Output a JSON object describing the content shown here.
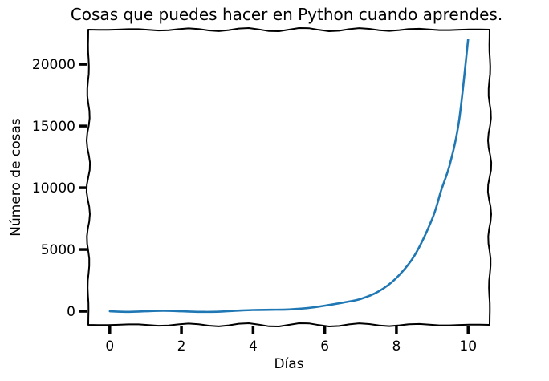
{
  "chart_data": {
    "type": "line",
    "title": "Cosas que puedes hacer en Python cuando aprendes.",
    "xlabel": "Días",
    "ylabel": "Número de cosas",
    "xlim": [
      -0.6,
      10.6
    ],
    "ylim": [
      -1100,
      22800
    ],
    "xticks": [
      0,
      2,
      4,
      6,
      8,
      10
    ],
    "yticks": [
      0,
      5000,
      10000,
      15000,
      20000
    ],
    "grid": false,
    "style": "xkcd",
    "series": [
      {
        "color": "#1f77b4",
        "x": [
          0,
          0.5,
          1,
          1.5,
          2,
          2.5,
          3,
          3.5,
          4,
          4.5,
          5,
          5.5,
          6,
          6.5,
          7,
          7.5,
          8,
          8.5,
          9,
          9.25,
          9.5,
          9.75,
          10
        ],
        "y": [
          0,
          -50,
          0,
          40,
          0,
          -50,
          -40,
          40,
          100,
          120,
          150,
          250,
          450,
          700,
          1000,
          1600,
          2700,
          4500,
          7500,
          9800,
          12000,
          15500,
          22000
        ]
      }
    ]
  }
}
